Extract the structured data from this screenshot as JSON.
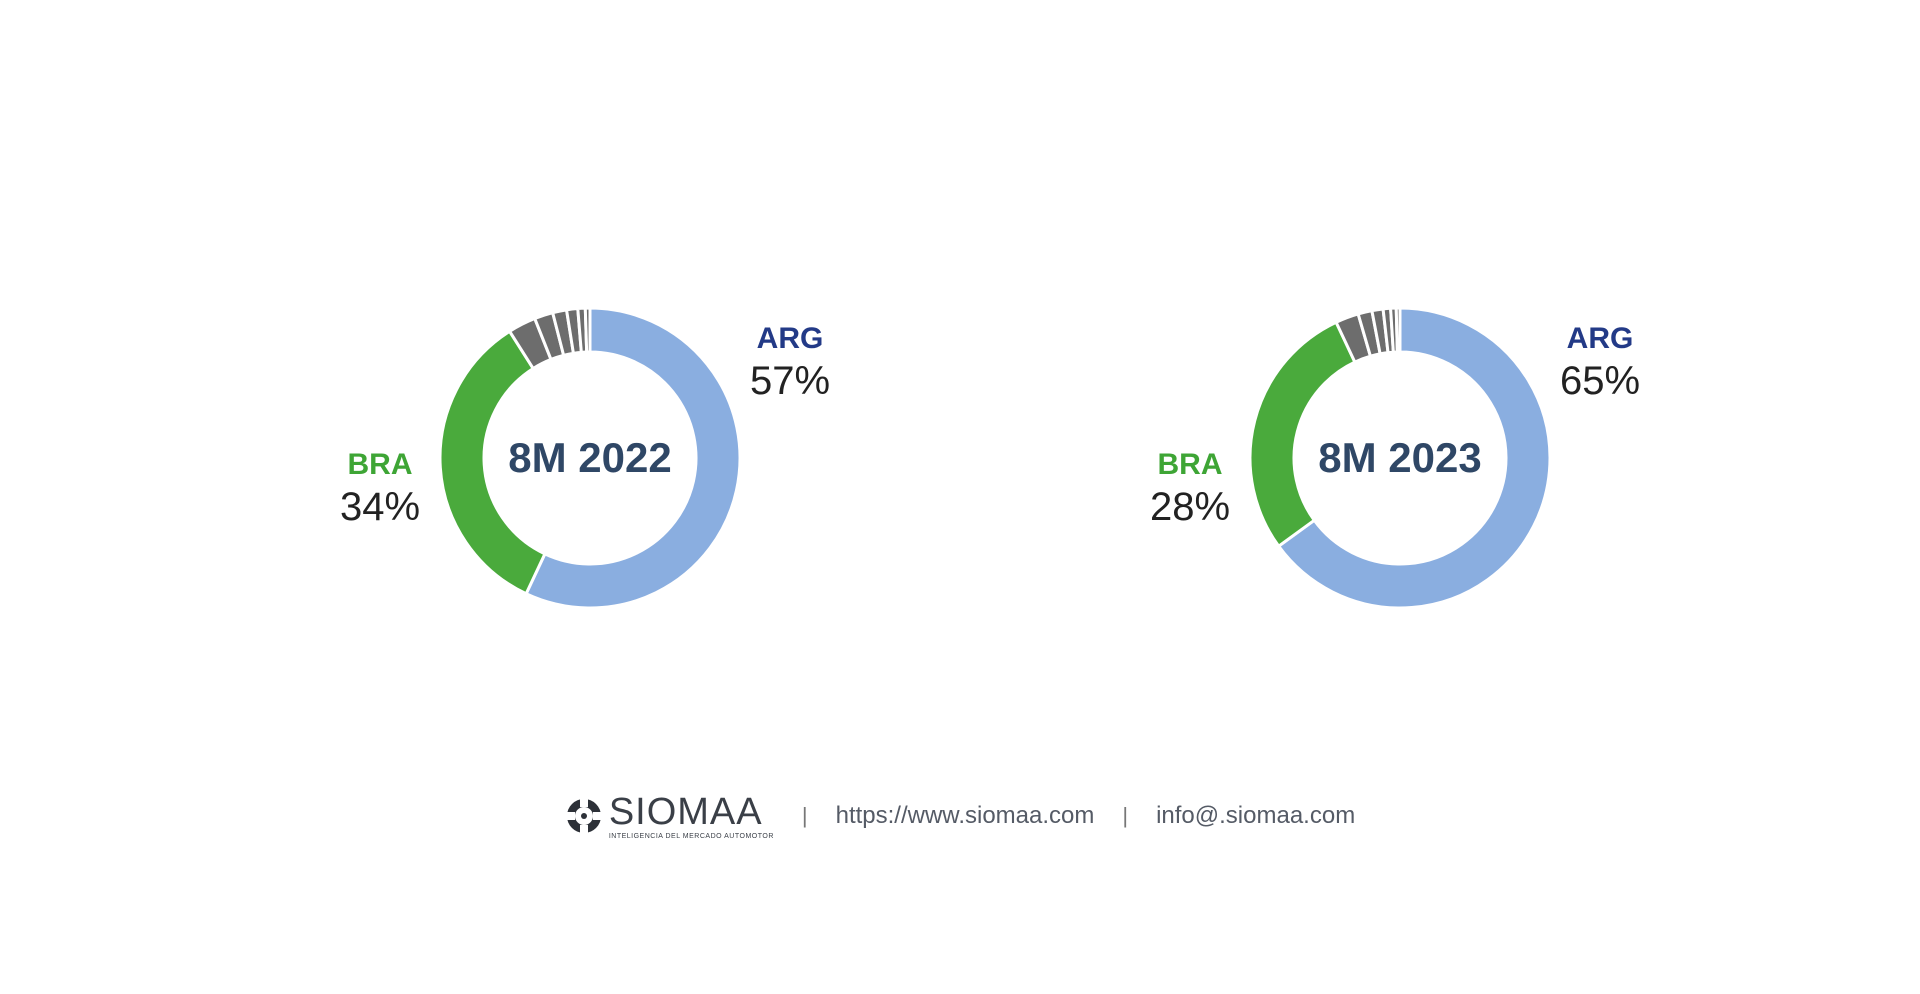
{
  "chart_data": [
    {
      "type": "pie",
      "title": "8M 2022",
      "slices": [
        {
          "label": "ARG",
          "value": 57,
          "display": "57%",
          "color": "#8aaee0",
          "labelColor": "#233a87",
          "labelSide": "right"
        },
        {
          "label": "BRA",
          "value": 34,
          "display": "34%",
          "color": "#4aaa3c",
          "labelColor": "#3ea535",
          "labelSide": "left"
        },
        {
          "label": "",
          "value": 3,
          "color": "#6d6d6d"
        },
        {
          "label": "",
          "value": 2,
          "color": "#6d6d6d"
        },
        {
          "label": "",
          "value": 1.5,
          "color": "#6d6d6d"
        },
        {
          "label": "",
          "value": 1.2,
          "color": "#6d6d6d"
        },
        {
          "label": "",
          "value": 0.8,
          "color": "#6d6d6d"
        },
        {
          "label": "",
          "value": 0.5,
          "color": "#6d6d6d"
        }
      ]
    },
    {
      "type": "pie",
      "title": "8M 2023",
      "slices": [
        {
          "label": "ARG",
          "value": 65,
          "display": "65%",
          "color": "#8aaee0",
          "labelColor": "#233a87",
          "labelSide": "right"
        },
        {
          "label": "BRA",
          "value": 28,
          "display": "28%",
          "color": "#4aaa3c",
          "labelColor": "#3ea535",
          "labelSide": "left"
        },
        {
          "label": "",
          "value": 2.5,
          "color": "#6d6d6d"
        },
        {
          "label": "",
          "value": 1.5,
          "color": "#6d6d6d"
        },
        {
          "label": "",
          "value": 1.2,
          "color": "#6d6d6d"
        },
        {
          "label": "",
          "value": 0.8,
          "color": "#6d6d6d"
        },
        {
          "label": "",
          "value": 0.6,
          "color": "#6d6d6d"
        },
        {
          "label": "",
          "value": 0.4,
          "color": "#6d6d6d"
        }
      ]
    }
  ],
  "footer": {
    "brand": "SIOMAA",
    "brand_tagline": "INTELIGENCIA DEL MERCADO AUTOMOTOR",
    "separator": "|",
    "website": "https://www.siomaa.com",
    "email": "info@.siomaa.com",
    "brand_icon": "siomaa-logo-icon"
  }
}
